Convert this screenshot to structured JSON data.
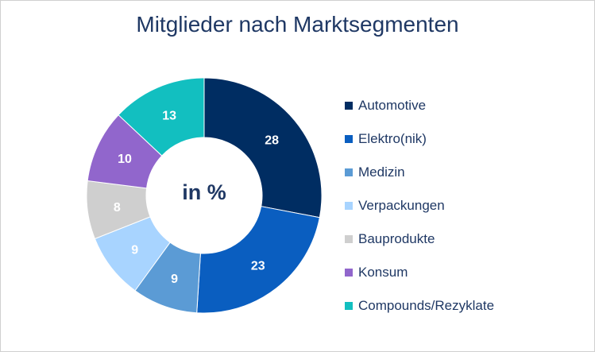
{
  "chart_data": {
    "type": "pie",
    "title": "Mitglieder nach Marktsegmenten",
    "center_label": "in %",
    "categories": [
      "Automotive",
      "Elektro(nik)",
      "Medizin",
      "Verpackungen",
      "Bauprodukte",
      "Konsum",
      "Compounds/Rezyklate"
    ],
    "values": [
      28,
      23,
      9,
      9,
      8,
      10,
      13
    ],
    "colors": [
      "#002d62",
      "#0a5ec0",
      "#5b9bd5",
      "#a8d4ff",
      "#cfcfcf",
      "#9166cc",
      "#12bfc0"
    ],
    "label_colors": [
      "#ffffff",
      "#ffffff",
      "#ffffff",
      "#ffffff",
      "#ffffff",
      "#ffffff",
      "#ffffff"
    ],
    "legend_placement": "right"
  }
}
